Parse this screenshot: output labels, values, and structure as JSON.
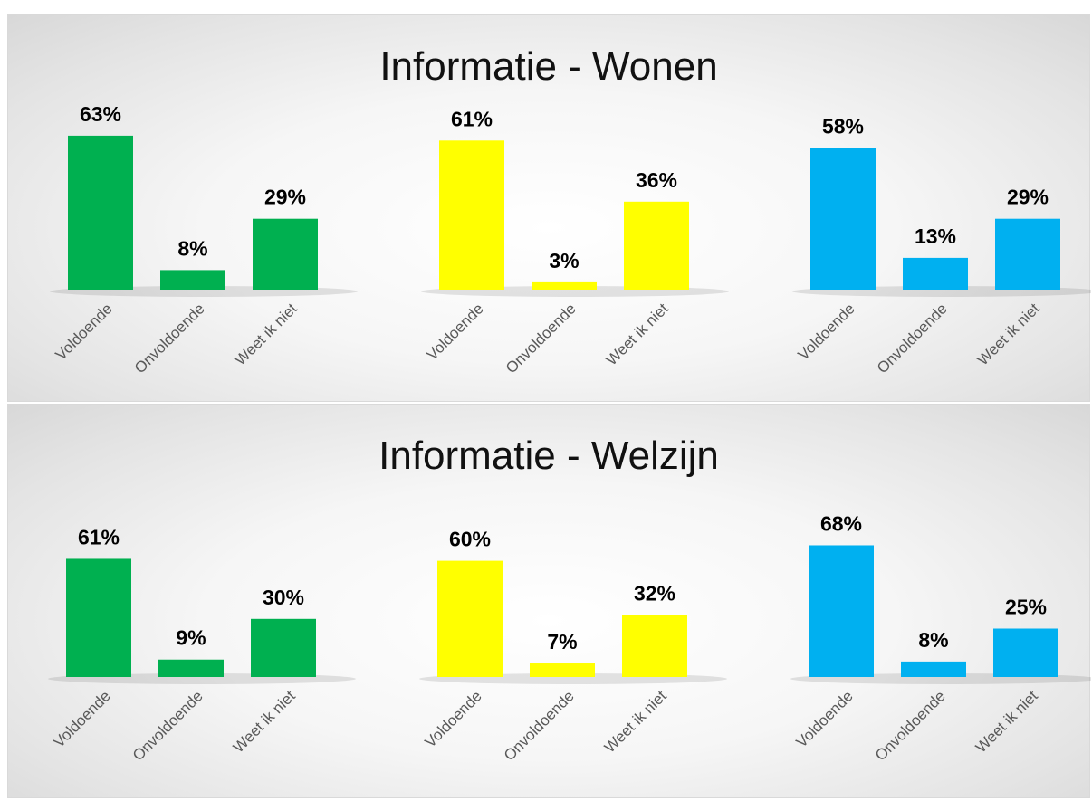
{
  "chart_data": [
    {
      "type": "bar",
      "title": "Informatie - Wonen",
      "categories": [
        "Voldoende",
        "Onvoldoende",
        "Weet ik niet"
      ],
      "groups": [
        {
          "color": "#00b050",
          "values": [
            63,
            8,
            29
          ],
          "labels": [
            "63%",
            "8%",
            "29%"
          ]
        },
        {
          "color": "#ffff00",
          "values": [
            61,
            3,
            36
          ],
          "labels": [
            "61%",
            "3%",
            "36%"
          ]
        },
        {
          "color": "#00b0f0",
          "values": [
            58,
            13,
            29
          ],
          "labels": [
            "58%",
            "13%",
            "29%"
          ]
        }
      ]
    },
    {
      "type": "bar",
      "title": "Informatie - Welzijn",
      "categories": [
        "Voldoende",
        "Onvoldoende",
        "Weet ik niet"
      ],
      "groups": [
        {
          "color": "#00b050",
          "values": [
            61,
            9,
            30
          ],
          "labels": [
            "61%",
            "9%",
            "30%"
          ]
        },
        {
          "color": "#ffff00",
          "values": [
            60,
            7,
            32
          ],
          "labels": [
            "60%",
            "7%",
            "32%"
          ]
        },
        {
          "color": "#00b0f0",
          "values": [
            68,
            8,
            25
          ],
          "labels": [
            "68%",
            "8%",
            "25%"
          ]
        }
      ]
    }
  ]
}
